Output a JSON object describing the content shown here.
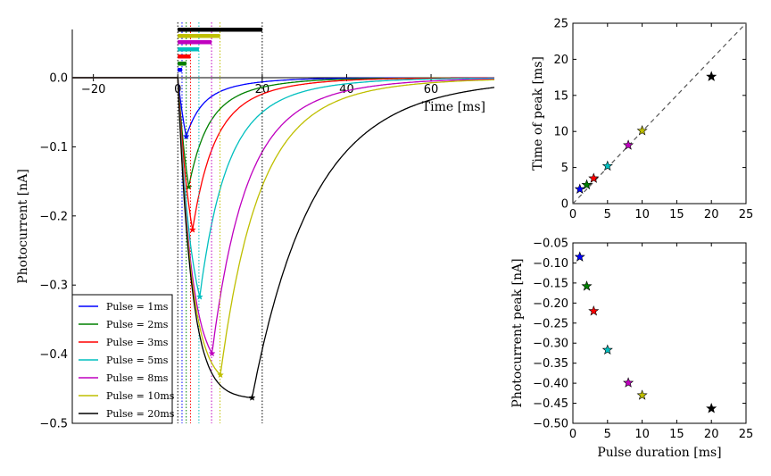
{
  "colors": {
    "1ms": "#0000ff",
    "2ms": "#008000",
    "3ms": "#ff0000",
    "5ms": "#00bfbf",
    "8ms": "#bf00bf",
    "10ms": "#bfbf00",
    "20ms": "#000000"
  },
  "chart_data": [
    {
      "type": "line",
      "title": "",
      "xlabel": "Time [ms]",
      "ylabel": "Photocurrent [nA]",
      "xlim": [
        -25,
        75
      ],
      "ylim": [
        -0.5,
        0.07
      ],
      "xticks": [
        "−20",
        "0",
        "20",
        "40",
        "60"
      ],
      "yticks": [
        "0.0",
        "−0.1",
        "−0.2",
        "−0.3",
        "−0.4",
        "−0.5"
      ],
      "grid": false,
      "legend_position": "lower-left",
      "legend": [
        "Pulse = 1ms",
        "Pulse = 2ms",
        "Pulse = 3ms",
        "Pulse = 5ms",
        "Pulse = 8ms",
        "Pulse = 10ms",
        "Pulse = 20ms"
      ],
      "series": [
        {
          "name": "Pulse = 1ms",
          "pulse_ms": 1,
          "peak_time": 2.0,
          "peak": -0.085
        },
        {
          "name": "Pulse = 2ms",
          "pulse_ms": 2,
          "peak_time": 2.6,
          "peak": -0.158
        },
        {
          "name": "Pulse = 3ms",
          "pulse_ms": 3,
          "peak_time": 3.5,
          "peak": -0.22
        },
        {
          "name": "Pulse = 5ms",
          "pulse_ms": 5,
          "peak_time": 5.2,
          "peak": -0.317
        },
        {
          "name": "Pulse = 8ms",
          "pulse_ms": 8,
          "peak_time": 8.1,
          "peak": -0.399
        },
        {
          "name": "Pulse = 10ms",
          "pulse_ms": 10,
          "peak_time": 10.1,
          "peak": -0.43
        },
        {
          "name": "Pulse = 20ms",
          "pulse_ms": 20,
          "peak_time": 17.6,
          "peak": -0.463
        }
      ]
    },
    {
      "type": "scatter",
      "title": "",
      "xlabel": "",
      "ylabel": "Time of peak [ms]",
      "xlim": [
        0,
        25
      ],
      "ylim": [
        0,
        25
      ],
      "xticks": [
        "0",
        "5",
        "10",
        "15",
        "20",
        "25"
      ],
      "yticks": [
        "0",
        "5",
        "10",
        "15",
        "20",
        "25"
      ],
      "grid": false,
      "reference_line": "y = x (dashed)",
      "points": [
        {
          "x": 1,
          "y": 2.0
        },
        {
          "x": 2,
          "y": 2.6
        },
        {
          "x": 3,
          "y": 3.5
        },
        {
          "x": 5,
          "y": 5.2
        },
        {
          "x": 8,
          "y": 8.1
        },
        {
          "x": 10,
          "y": 10.1
        },
        {
          "x": 20,
          "y": 17.6
        }
      ]
    },
    {
      "type": "scatter",
      "title": "",
      "xlabel": "Pulse duration [ms]",
      "ylabel": "Photocurrent peak [nA]",
      "xlim": [
        0,
        25
      ],
      "ylim": [
        -0.5,
        -0.05
      ],
      "xticks": [
        "0",
        "5",
        "10",
        "15",
        "20",
        "25"
      ],
      "yticks": [
        "−0.05",
        "−0.10",
        "−0.15",
        "−0.20",
        "−0.25",
        "−0.30",
        "−0.35",
        "−0.40",
        "−0.45",
        "−0.50"
      ],
      "grid": false,
      "points": [
        {
          "x": 1,
          "y": -0.085
        },
        {
          "x": 2,
          "y": -0.158
        },
        {
          "x": 3,
          "y": -0.22
        },
        {
          "x": 5,
          "y": -0.317
        },
        {
          "x": 8,
          "y": -0.399
        },
        {
          "x": 10,
          "y": -0.43
        },
        {
          "x": 20,
          "y": -0.463
        }
      ]
    }
  ]
}
